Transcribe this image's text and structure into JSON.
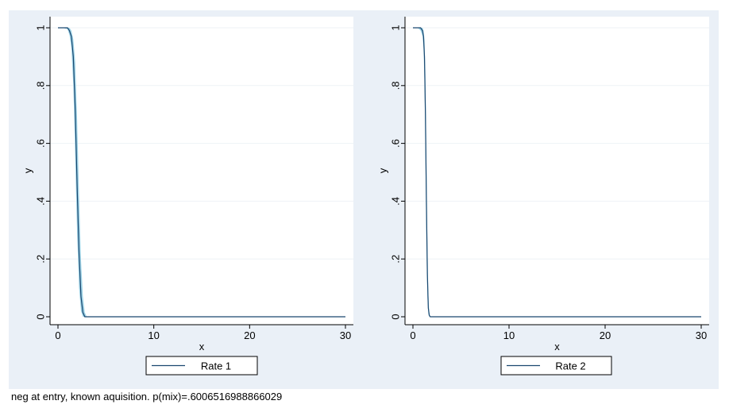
{
  "note": "neg at entry, known aquisition.  p(mix)=.6006516988866029",
  "colors": {
    "background": "#eaf0f7",
    "plot_area": "#ffffff",
    "grid": "#eef2f6",
    "line": "#1a476f",
    "ci_band": "#9fd3e6",
    "axis": "#000000"
  },
  "chart_data": [
    {
      "type": "line",
      "xlabel": "x",
      "ylabel": "y",
      "xlim": [
        0,
        30
      ],
      "ylim": [
        0,
        1
      ],
      "xticks": [
        0,
        10,
        20,
        30
      ],
      "yticks": [
        0,
        0.2,
        0.4,
        0.6,
        0.8,
        1
      ],
      "ytick_labels": [
        "0",
        ".2",
        ".4",
        ".6",
        ".8",
        "1"
      ],
      "legend": "Rate 1",
      "legend_position": "bottom",
      "series": [
        {
          "name": "Rate 1",
          "x": [
            0,
            0.5,
            1,
            1.2,
            1.4,
            1.6,
            1.8,
            2.0,
            2.2,
            2.4,
            2.6,
            2.8,
            3,
            4,
            10,
            20,
            30
          ],
          "values": [
            1,
            1,
            1,
            0.99,
            0.97,
            0.9,
            0.72,
            0.45,
            0.22,
            0.07,
            0.015,
            0,
            0,
            0,
            0,
            0,
            0
          ],
          "lower": [
            1,
            1,
            0.995,
            0.975,
            0.93,
            0.8,
            0.55,
            0.28,
            0.1,
            0.02,
            0,
            0,
            0,
            0,
            0,
            0,
            0
          ],
          "upper": [
            1,
            1,
            1,
            1,
            0.99,
            0.96,
            0.88,
            0.68,
            0.42,
            0.2,
            0.07,
            0.015,
            0,
            0,
            0,
            0,
            0
          ]
        }
      ]
    },
    {
      "type": "line",
      "xlabel": "x",
      "ylabel": "y",
      "xlim": [
        0,
        30
      ],
      "ylim": [
        0,
        1
      ],
      "xticks": [
        0,
        10,
        20,
        30
      ],
      "yticks": [
        0,
        0.2,
        0.4,
        0.6,
        0.8,
        1
      ],
      "ytick_labels": [
        "0",
        ".2",
        ".4",
        ".6",
        ".8",
        "1"
      ],
      "legend": "Rate 2",
      "legend_position": "bottom",
      "series": [
        {
          "name": "Rate 2",
          "x": [
            0,
            0.5,
            0.8,
            1.0,
            1.1,
            1.2,
            1.3,
            1.4,
            1.5,
            1.6,
            1.7,
            1.8,
            2,
            5,
            10,
            20,
            30
          ],
          "values": [
            1,
            1,
            1,
            0.99,
            0.97,
            0.9,
            0.7,
            0.4,
            0.15,
            0.03,
            0.005,
            0,
            0,
            0,
            0,
            0,
            0
          ],
          "lower": [
            1,
            1,
            0.99,
            0.97,
            0.93,
            0.82,
            0.55,
            0.25,
            0.07,
            0.01,
            0,
            0,
            0,
            0,
            0,
            0,
            0
          ],
          "upper": [
            1,
            1,
            1,
            1,
            0.99,
            0.96,
            0.84,
            0.56,
            0.27,
            0.08,
            0.015,
            0,
            0,
            0,
            0,
            0,
            0
          ]
        }
      ]
    }
  ]
}
